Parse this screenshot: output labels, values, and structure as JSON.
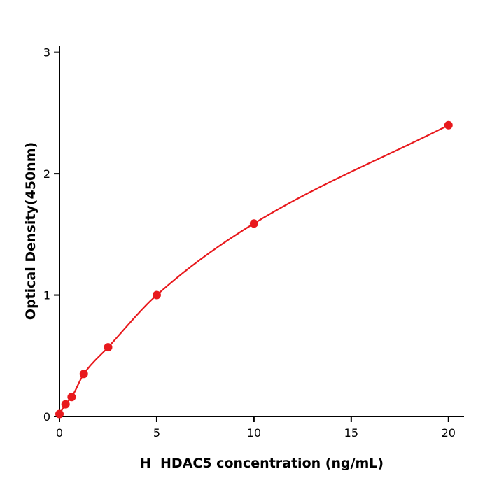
{
  "chart_data": {
    "type": "scatter",
    "title": "",
    "xlabel": "H  HDAC5 concentration (ng/mL)",
    "ylabel": "Optical Density(450nm)",
    "x": [
      0,
      0.3125,
      0.625,
      1.25,
      2.5,
      5,
      10,
      20
    ],
    "y": [
      0.02,
      0.1,
      0.16,
      0.35,
      0.57,
      1.0,
      1.59,
      2.4
    ],
    "x_ticks": [
      0,
      5,
      10,
      15,
      20
    ],
    "y_ticks": [
      0,
      1,
      2,
      3
    ],
    "xlim": [
      0,
      20.8
    ],
    "ylim": [
      0,
      3.05
    ],
    "grid": false,
    "legend_position": "none",
    "line": true,
    "marker": "circle",
    "marker_radius": 6,
    "point_color": "#e8191d",
    "line_color": "#e8191d",
    "axis_color": "#000000",
    "tick_font_size": 16,
    "background_color": "#ffffff"
  }
}
